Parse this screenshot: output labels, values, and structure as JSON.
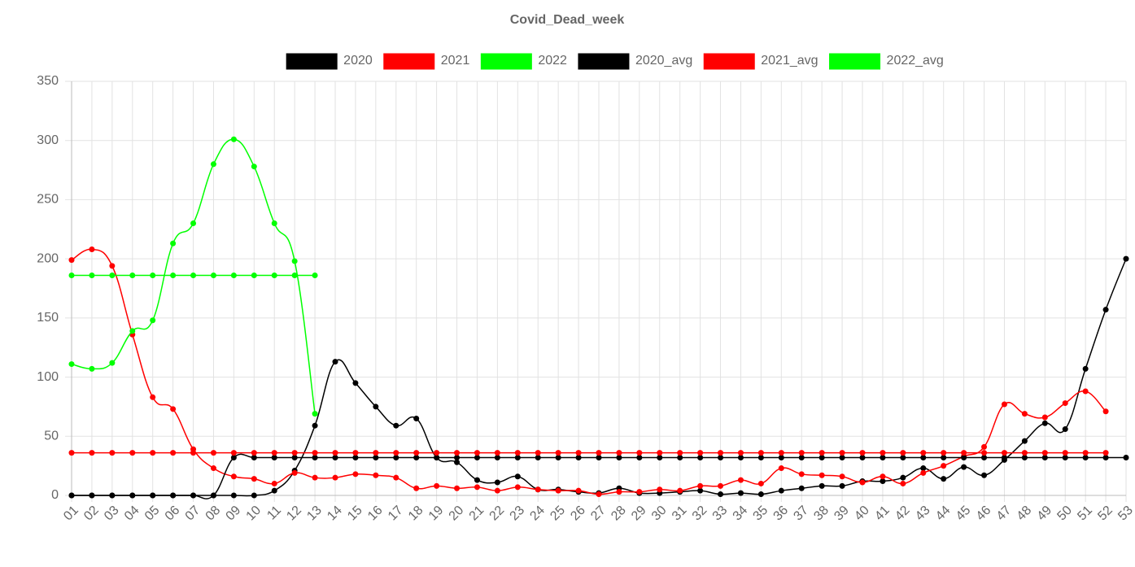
{
  "chart_data": {
    "type": "line",
    "title": "Covid_Dead_week",
    "categories": [
      "01",
      "02",
      "03",
      "04",
      "05",
      "06",
      "07",
      "08",
      "09",
      "10",
      "11",
      "12",
      "13",
      "14",
      "15",
      "16",
      "17",
      "18",
      "19",
      "20",
      "21",
      "22",
      "23",
      "24",
      "25",
      "26",
      "27",
      "28",
      "29",
      "30",
      "31",
      "32",
      "33",
      "34",
      "35",
      "36",
      "37",
      "38",
      "39",
      "40",
      "41",
      "42",
      "43",
      "44",
      "45",
      "46",
      "47",
      "48",
      "49",
      "50",
      "51",
      "52",
      "53"
    ],
    "series": [
      {
        "name": "2020",
        "color": "#000000",
        "values": [
          0,
          0,
          0,
          0,
          0,
          0,
          0,
          0,
          0,
          0,
          4,
          21,
          59,
          113,
          95,
          75,
          59,
          65,
          32,
          28,
          13,
          11,
          16,
          5,
          5,
          3,
          2,
          6,
          2,
          2,
          3,
          4,
          1,
          2,
          1,
          4,
          6,
          8,
          8,
          12,
          12,
          15,
          23,
          14,
          24,
          17,
          30,
          46,
          61,
          56,
          107,
          157,
          200
        ]
      },
      {
        "name": "2021",
        "color": "#ff0000",
        "values": [
          199,
          208,
          194,
          136,
          83,
          73,
          39,
          23,
          16,
          14,
          10,
          19,
          15,
          15,
          18,
          17,
          15,
          6,
          8,
          6,
          7,
          4,
          7,
          5,
          4,
          4,
          1,
          3,
          3,
          5,
          4,
          8,
          8,
          13,
          10,
          23,
          18,
          17,
          16,
          11,
          16,
          10,
          19,
          25,
          33,
          41,
          77,
          69,
          66,
          78,
          88,
          71,
          null
        ]
      },
      {
        "name": "2022",
        "color": "#00ff00",
        "values": [
          111,
          107,
          112,
          139,
          148,
          213,
          230,
          280,
          301,
          278,
          230,
          198,
          69,
          null,
          null,
          null,
          null,
          null,
          null,
          null,
          null,
          null,
          null,
          null,
          null,
          null,
          null,
          null,
          null,
          null,
          null,
          null,
          null,
          null,
          null,
          null,
          null,
          null,
          null,
          null,
          null,
          null,
          null,
          null,
          null,
          null,
          null,
          null,
          null,
          null,
          null,
          null,
          null
        ]
      },
      {
        "name": "2020_avg",
        "color": "#000000",
        "values": [
          0,
          0,
          0,
          0,
          0,
          0,
          0,
          0,
          32,
          32,
          32,
          32,
          32,
          32,
          32,
          32,
          32,
          32,
          32,
          32,
          32,
          32,
          32,
          32,
          32,
          32,
          32,
          32,
          32,
          32,
          32,
          32,
          32,
          32,
          32,
          32,
          32,
          32,
          32,
          32,
          32,
          32,
          32,
          32,
          32,
          32,
          32,
          32,
          32,
          32,
          32,
          32,
          32
        ]
      },
      {
        "name": "2021_avg",
        "color": "#ff0000",
        "values": [
          36,
          36,
          36,
          36,
          36,
          36,
          36,
          36,
          36,
          36,
          36,
          36,
          36,
          36,
          36,
          36,
          36,
          36,
          36,
          36,
          36,
          36,
          36,
          36,
          36,
          36,
          36,
          36,
          36,
          36,
          36,
          36,
          36,
          36,
          36,
          36,
          36,
          36,
          36,
          36,
          36,
          36,
          36,
          36,
          36,
          36,
          36,
          36,
          36,
          36,
          36,
          36,
          null
        ]
      },
      {
        "name": "2022_avg",
        "color": "#00ff00",
        "values": [
          186,
          186,
          186,
          186,
          186,
          186,
          186,
          186,
          186,
          186,
          186,
          186,
          186,
          null,
          null,
          null,
          null,
          null,
          null,
          null,
          null,
          null,
          null,
          null,
          null,
          null,
          null,
          null,
          null,
          null,
          null,
          null,
          null,
          null,
          null,
          null,
          null,
          null,
          null,
          null,
          null,
          null,
          null,
          null,
          null,
          null,
          null,
          null,
          null,
          null,
          null,
          null,
          null
        ]
      }
    ],
    "ylim": [
      0,
      350
    ],
    "yticks": [
      0,
      50,
      100,
      150,
      200,
      250,
      300,
      350
    ],
    "grid": true,
    "legend": "top"
  }
}
